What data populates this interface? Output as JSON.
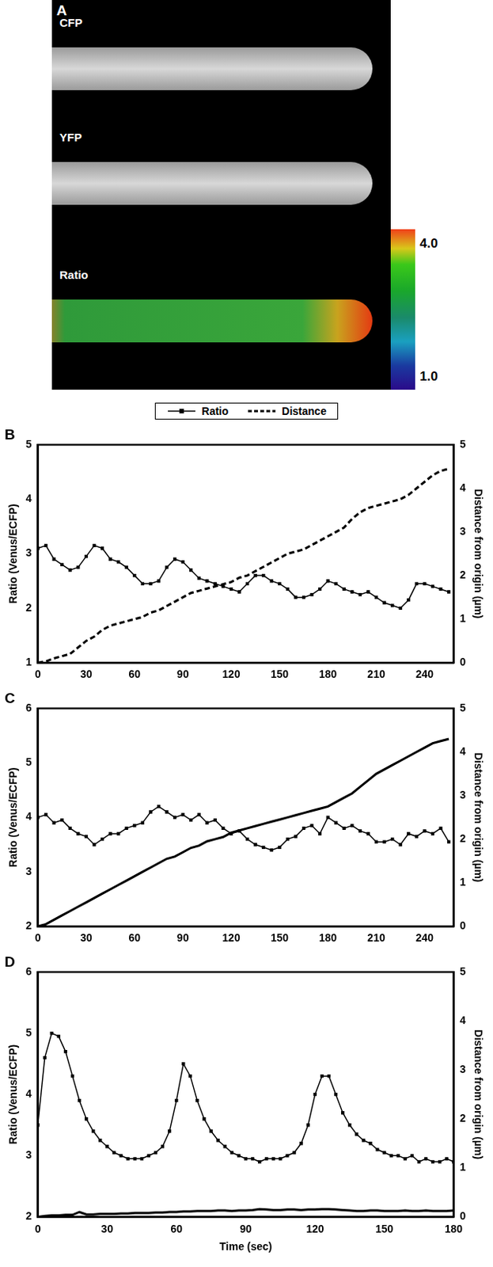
{
  "panel_a": {
    "panel": "A",
    "images": [
      "CFP",
      "YFP",
      "Ratio"
    ],
    "colorbar": {
      "range": [
        1.0,
        4.0
      ],
      "ticks": [
        {
          "value": 4,
          "label": "4.0"
        },
        {
          "value": 1,
          "label": "1.0"
        }
      ]
    }
  },
  "chart_data": [
    {
      "type": "line",
      "panel": "B",
      "legend": "top",
      "grid": false,
      "y_label": "Ratio (Venus/ECFP)",
      "y2_label": "Distance from origin (µm)",
      "x": [
        0,
        5,
        10,
        15,
        20,
        25,
        30,
        35,
        40,
        45,
        50,
        55,
        60,
        65,
        70,
        75,
        80,
        85,
        90,
        95,
        100,
        105,
        110,
        115,
        120,
        125,
        130,
        135,
        140,
        145,
        150,
        155,
        160,
        165,
        170,
        175,
        180,
        185,
        190,
        195,
        200,
        205,
        210,
        215,
        220,
        225,
        230,
        235,
        240,
        245,
        250,
        255
      ],
      "xlim": [
        0,
        258
      ],
      "xticks": [
        0,
        30,
        60,
        90,
        120,
        150,
        180,
        210,
        240
      ],
      "ylim": [
        1,
        5
      ],
      "yticks": [
        1,
        2,
        3,
        4,
        5
      ],
      "y2lim": [
        0,
        5
      ],
      "y2ticks": [
        0,
        1,
        2,
        3,
        4,
        5
      ],
      "series": [
        {
          "name": "Ratio",
          "color": "#000000",
          "marker": "square",
          "line_style": "solid",
          "values": [
            3.1,
            3.15,
            2.9,
            2.8,
            2.7,
            2.75,
            2.95,
            3.15,
            3.1,
            2.9,
            2.85,
            2.75,
            2.6,
            2.45,
            2.45,
            2.5,
            2.75,
            2.9,
            2.85,
            2.7,
            2.55,
            2.5,
            2.45,
            2.4,
            2.35,
            2.3,
            2.45,
            2.6,
            2.6,
            2.5,
            2.45,
            2.35,
            2.2,
            2.2,
            2.25,
            2.35,
            2.5,
            2.45,
            2.35,
            2.3,
            2.25,
            2.3,
            2.2,
            2.1,
            2.05,
            2.0,
            2.15,
            2.45,
            2.45,
            2.4,
            2.35,
            2.3
          ]
        },
        {
          "name": "Distance",
          "color": "#000000",
          "line_style": "dashed",
          "axis": "y2",
          "values": [
            0,
            0.03,
            0.1,
            0.15,
            0.2,
            0.35,
            0.5,
            0.6,
            0.75,
            0.85,
            0.9,
            0.95,
            1.0,
            1.05,
            1.15,
            1.2,
            1.3,
            1.4,
            1.5,
            1.6,
            1.65,
            1.7,
            1.75,
            1.8,
            1.85,
            1.95,
            2.0,
            2.1,
            2.2,
            2.3,
            2.4,
            2.5,
            2.55,
            2.6,
            2.7,
            2.8,
            2.9,
            3.0,
            3.1,
            3.3,
            3.45,
            3.55,
            3.6,
            3.65,
            3.7,
            3.75,
            3.85,
            4.0,
            4.15,
            4.3,
            4.4,
            4.45
          ]
        }
      ]
    },
    {
      "type": "line",
      "panel": "C",
      "grid": false,
      "y_label": "Ratio (Venus/ECFP)",
      "y2_label": "Distance from origin (µm)",
      "x": [
        0,
        5,
        10,
        15,
        20,
        25,
        30,
        35,
        40,
        45,
        50,
        55,
        60,
        65,
        70,
        75,
        80,
        85,
        90,
        95,
        100,
        105,
        110,
        115,
        120,
        125,
        130,
        135,
        140,
        145,
        150,
        155,
        160,
        165,
        170,
        175,
        180,
        185,
        190,
        195,
        200,
        205,
        210,
        215,
        220,
        225,
        230,
        235,
        240,
        245,
        250,
        255
      ],
      "xlim": [
        0,
        258
      ],
      "xticks": [
        0,
        30,
        60,
        90,
        120,
        150,
        180,
        210,
        240
      ],
      "ylim": [
        2,
        6
      ],
      "yticks": [
        2,
        3,
        4,
        5,
        6
      ],
      "y2lim": [
        0,
        5
      ],
      "y2ticks": [
        0,
        1,
        2,
        3,
        4,
        5
      ],
      "series": [
        {
          "name": "Ratio",
          "color": "#000000",
          "marker": "square",
          "line_style": "solid",
          "values": [
            4.0,
            4.05,
            3.9,
            3.95,
            3.8,
            3.7,
            3.65,
            3.5,
            3.6,
            3.7,
            3.7,
            3.8,
            3.85,
            3.9,
            4.1,
            4.2,
            4.1,
            4.0,
            4.05,
            3.95,
            4.05,
            3.9,
            3.95,
            3.8,
            3.7,
            3.75,
            3.6,
            3.5,
            3.45,
            3.4,
            3.45,
            3.6,
            3.65,
            3.8,
            3.85,
            3.7,
            4.0,
            3.9,
            3.8,
            3.85,
            3.75,
            3.7,
            3.55,
            3.55,
            3.6,
            3.5,
            3.7,
            3.65,
            3.75,
            3.7,
            3.8,
            3.55
          ]
        },
        {
          "name": "Distance",
          "color": "#000000",
          "line_style": "solid",
          "axis": "y2",
          "values": [
            0,
            0.05,
            0.15,
            0.25,
            0.35,
            0.45,
            0.55,
            0.65,
            0.75,
            0.85,
            0.95,
            1.05,
            1.15,
            1.25,
            1.35,
            1.45,
            1.55,
            1.6,
            1.7,
            1.8,
            1.85,
            1.95,
            2.0,
            2.05,
            2.15,
            2.2,
            2.25,
            2.3,
            2.35,
            2.4,
            2.45,
            2.5,
            2.55,
            2.6,
            2.65,
            2.7,
            2.75,
            2.85,
            2.95,
            3.05,
            3.2,
            3.35,
            3.5,
            3.6,
            3.7,
            3.8,
            3.9,
            4.0,
            4.1,
            4.2,
            4.25,
            4.3
          ]
        }
      ]
    },
    {
      "type": "line",
      "panel": "D",
      "grid": false,
      "x_label": "Time (sec)",
      "y_label": "Ratio (Venus/ECFP)",
      "y2_label": "Distance from origin (µm)",
      "x": [
        0,
        3,
        6,
        9,
        12,
        15,
        18,
        21,
        24,
        27,
        30,
        33,
        36,
        39,
        42,
        45,
        48,
        51,
        54,
        57,
        60,
        63,
        66,
        69,
        72,
        75,
        78,
        81,
        84,
        87,
        90,
        93,
        96,
        99,
        102,
        105,
        108,
        111,
        114,
        117,
        120,
        123,
        126,
        129,
        132,
        135,
        138,
        141,
        144,
        147,
        150,
        153,
        156,
        159,
        162,
        165,
        168,
        171,
        174,
        177,
        180
      ],
      "xlim": [
        0,
        180
      ],
      "xticks": [
        0,
        30,
        60,
        90,
        120,
        150,
        180
      ],
      "ylim": [
        2,
        6
      ],
      "yticks": [
        2,
        3,
        4,
        5,
        6
      ],
      "y2lim": [
        0,
        5
      ],
      "y2ticks": [
        0,
        1,
        2,
        3,
        4,
        5
      ],
      "series": [
        {
          "name": "Ratio",
          "color": "#000000",
          "marker": "square",
          "line_style": "solid",
          "values": [
            3.5,
            4.6,
            5.0,
            4.95,
            4.7,
            4.3,
            3.9,
            3.6,
            3.4,
            3.25,
            3.15,
            3.05,
            3.0,
            2.95,
            2.95,
            2.95,
            3.0,
            3.05,
            3.15,
            3.4,
            3.9,
            4.5,
            4.3,
            3.9,
            3.6,
            3.4,
            3.25,
            3.15,
            3.05,
            3.0,
            2.95,
            2.95,
            2.9,
            2.95,
            2.95,
            2.95,
            3.0,
            3.05,
            3.2,
            3.5,
            4.0,
            4.3,
            4.3,
            4.0,
            3.7,
            3.5,
            3.35,
            3.25,
            3.2,
            3.1,
            3.05,
            3.0,
            3.0,
            2.95,
            3.0,
            2.9,
            2.95,
            2.9,
            2.9,
            2.95,
            2.9
          ]
        },
        {
          "name": "Distance",
          "color": "#000000",
          "line_style": "solid",
          "axis": "y2",
          "values": [
            0,
            0.02,
            0.03,
            0.03,
            0.04,
            0.04,
            0.1,
            0.05,
            0.05,
            0.06,
            0.06,
            0.06,
            0.07,
            0.07,
            0.08,
            0.08,
            0.08,
            0.09,
            0.09,
            0.1,
            0.1,
            0.11,
            0.11,
            0.12,
            0.12,
            0.12,
            0.13,
            0.13,
            0.12,
            0.13,
            0.13,
            0.14,
            0.16,
            0.15,
            0.14,
            0.14,
            0.15,
            0.15,
            0.14,
            0.15,
            0.15,
            0.16,
            0.16,
            0.15,
            0.14,
            0.13,
            0.12,
            0.12,
            0.13,
            0.13,
            0.12,
            0.12,
            0.12,
            0.13,
            0.12,
            0.12,
            0.13,
            0.12,
            0.12,
            0.12,
            0.13
          ]
        }
      ]
    }
  ]
}
